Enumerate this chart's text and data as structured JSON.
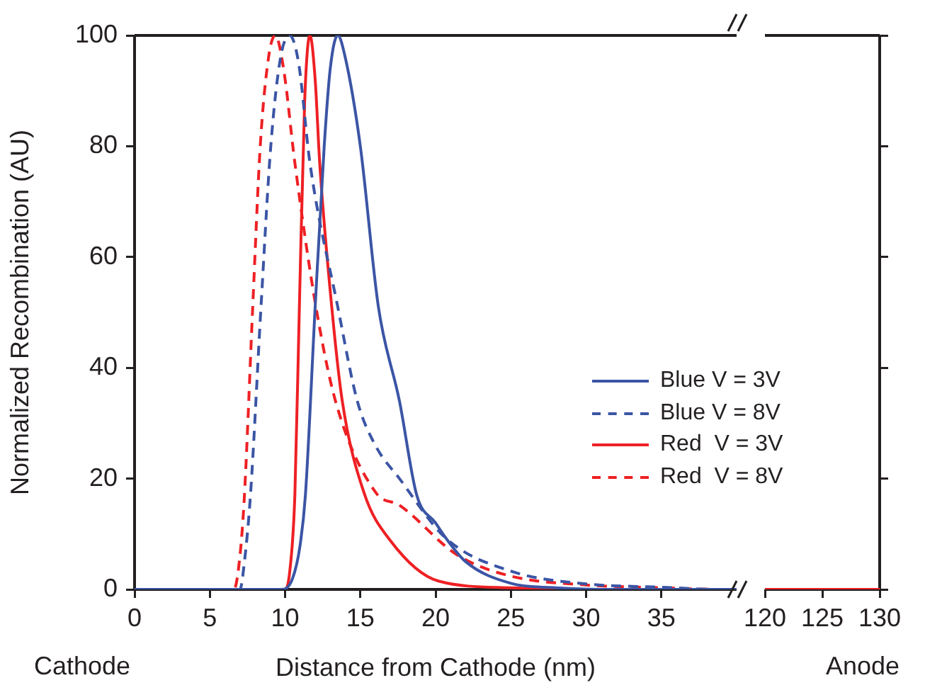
{
  "chart_data": [
    {
      "type": "line",
      "xlabel": "Distance from Cathode (nm)",
      "ylabel": "Normalized Recombination (AU)",
      "xlim": [
        0,
        40
      ],
      "xticks": [
        0,
        5,
        10,
        15,
        20,
        25,
        30,
        35
      ],
      "ylim": [
        0,
        100
      ],
      "yticks": [
        0,
        20,
        40,
        60,
        80,
        100
      ],
      "grid": false,
      "legend": "right",
      "marker": "none",
      "annotations": [
        "Cathode"
      ],
      "series": [
        {
          "name": "Blue V = 3V",
          "color": "#3b55a5",
          "line_style": "solid",
          "x": [
            0,
            9.8,
            10.5,
            11.0,
            11.35,
            12.0,
            12.6,
            13.0,
            13.5,
            14.0,
            15.0,
            16.2,
            17.6,
            18.75,
            20.0,
            20.7,
            22.0,
            25.0,
            28.0,
            32.0,
            40.0
          ],
          "values": [
            0,
            0,
            2,
            8,
            17,
            51,
            80,
            94,
            100,
            96,
            80,
            51,
            34,
            17,
            12,
            9.2,
            5,
            1.1,
            0.3,
            0,
            0
          ]
        },
        {
          "name": "Blue V = 8V",
          "color": "#3b55a5",
          "line_style": "dashed",
          "x": [
            0,
            7.0,
            7.3,
            7.7,
            8.4,
            9.05,
            9.7,
            10.3,
            10.9,
            11.65,
            13.5,
            14.8,
            16.0,
            17.6,
            20.7,
            25.0,
            30.0,
            35.0,
            39.0,
            40.0
          ],
          "values": [
            0,
            0,
            5,
            17,
            51,
            80,
            96,
            100,
            95,
            77,
            51,
            34,
            26,
            20,
            9.2,
            3.3,
            1,
            0.4,
            0,
            0
          ]
        },
        {
          "name": "Red  V = 3V",
          "color": "#ee2024",
          "line_style": "solid",
          "x": [
            0,
            10.0,
            10.3,
            10.65,
            10.95,
            11.3,
            11.65,
            12.0,
            12.3,
            13.1,
            13.8,
            15.25,
            17.0,
            20.2,
            25.0,
            30.0,
            40.0
          ],
          "values": [
            0,
            0,
            3,
            17,
            51,
            88,
            100,
            92,
            77,
            51,
            34,
            17.4,
            8.8,
            1.5,
            0.3,
            0,
            0
          ]
        },
        {
          "name": "Red  V = 8V",
          "color": "#ee2024",
          "line_style": "dashed",
          "x": [
            0,
            6.6,
            7.0,
            7.3,
            7.85,
            8.35,
            8.9,
            9.35,
            9.9,
            10.65,
            12.05,
            13.35,
            16.05,
            17.6,
            21.45,
            25.0,
            30.0,
            35.0,
            39.0,
            40.0
          ],
          "values": [
            0,
            0,
            6,
            17,
            51,
            80,
            96,
            100,
            94,
            77,
            51,
            34,
            17.4,
            15.2,
            6.2,
            2.4,
            0.8,
            0.3,
            0,
            0
          ]
        }
      ]
    },
    {
      "type": "line",
      "xlim": [
        120,
        130
      ],
      "xticks": [
        120,
        125,
        130
      ],
      "ylim": [
        0,
        100
      ],
      "yticks": [
        0,
        20,
        40,
        60,
        80,
        100
      ],
      "tick_labels": "x",
      "grid": false,
      "marker": "none",
      "annotations": [
        "Anode"
      ],
      "series": [
        {
          "color": "#ee2024",
          "line_style": "solid",
          "x": [
            120,
            130
          ],
          "values": [
            0,
            0
          ]
        }
      ]
    }
  ]
}
